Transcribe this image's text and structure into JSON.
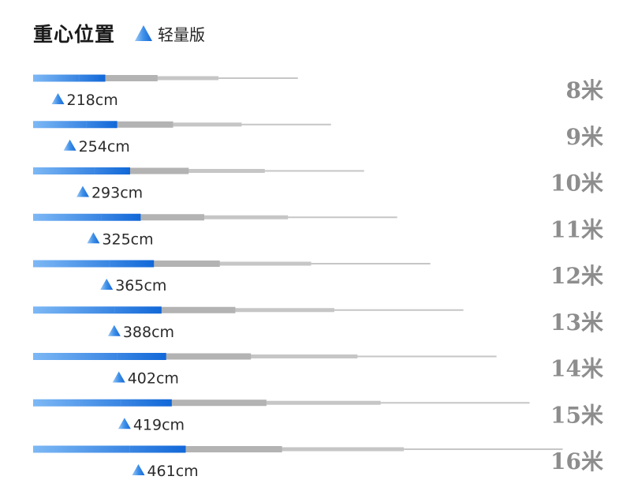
{
  "title": "重心位置",
  "legend": {
    "label": "轻量版",
    "marker": "triangle-icon",
    "color": "#1f7fe0"
  },
  "colors": {
    "gradient_start": "#7db8f5",
    "gradient_end": "#1268d8",
    "gray_thick": "#b3b3b3",
    "gray_thin": "#c6c6c6",
    "triangle_light": "#9cc9f7",
    "triangle_dark": "#1668d6"
  },
  "chart_data": {
    "type": "bar",
    "title": "重心位置",
    "categories": [
      "8米",
      "9米",
      "10米",
      "11米",
      "12米",
      "13米",
      "14米",
      "15米",
      "16米"
    ],
    "series": [
      {
        "name": "轻量版",
        "values": [
          218,
          254,
          293,
          325,
          365,
          388,
          402,
          419,
          461
        ],
        "labels": [
          "218cm",
          "254cm",
          "293cm",
          "325cm",
          "365cm",
          "388cm",
          "402cm",
          "419cm",
          "461cm"
        ]
      }
    ],
    "total_lengths": [
      800,
      900,
      1000,
      1100,
      1200,
      1300,
      1400,
      1500,
      1600
    ],
    "unit": "cm"
  }
}
